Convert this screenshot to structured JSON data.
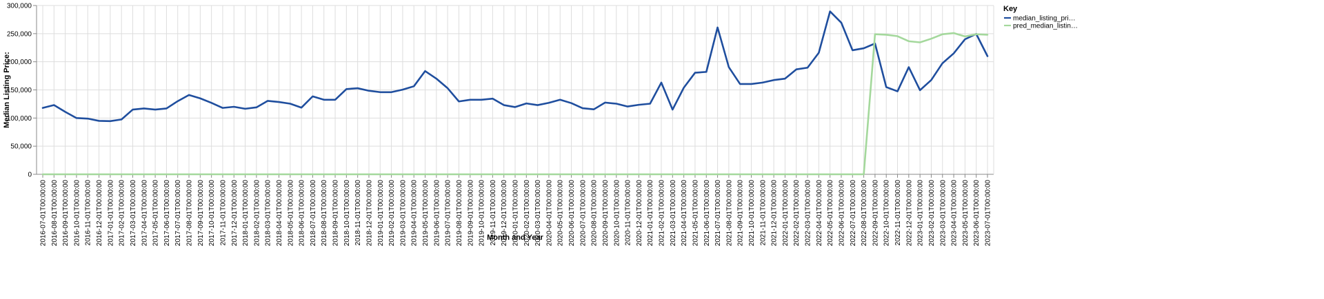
{
  "chart_data": {
    "type": "line",
    "xlabel": "Month and Year",
    "ylabel": "Median Listing Price:",
    "ylim": [
      0,
      300000
    ],
    "y_ticks": [
      "0",
      "50,000",
      "100,000",
      "150,000",
      "200,000",
      "250,000",
      "300,000"
    ],
    "grid": true,
    "legend": {
      "title": "Key",
      "placement": "right",
      "entries": [
        "median_listing_pri…",
        "pred_median_listin…"
      ]
    },
    "x": [
      "2016-07-01T00:00:00",
      "2016-08-01T00:00:00",
      "2016-09-01T00:00:00",
      "2016-10-01T00:00:00",
      "2016-11-01T00:00:00",
      "2016-12-01T00:00:00",
      "2017-01-01T00:00:00",
      "2017-02-01T00:00:00",
      "2017-03-01T00:00:00",
      "2017-04-01T00:00:00",
      "2017-05-01T00:00:00",
      "2017-06-01T00:00:00",
      "2017-07-01T00:00:00",
      "2017-08-01T00:00:00",
      "2017-09-01T00:00:00",
      "2017-10-01T00:00:00",
      "2017-11-01T00:00:00",
      "2017-12-01T00:00:00",
      "2018-01-01T00:00:00",
      "2018-02-01T00:00:00",
      "2018-03-01T00:00:00",
      "2018-04-01T00:00:00",
      "2018-05-01T00:00:00",
      "2018-06-01T00:00:00",
      "2018-07-01T00:00:00",
      "2018-08-01T00:00:00",
      "2018-09-01T00:00:00",
      "2018-10-01T00:00:00",
      "2018-11-01T00:00:00",
      "2018-12-01T00:00:00",
      "2019-01-01T00:00:00",
      "2019-02-01T00:00:00",
      "2019-03-01T00:00:00",
      "2019-04-01T00:00:00",
      "2019-05-01T00:00:00",
      "2019-06-01T00:00:00",
      "2019-07-01T00:00:00",
      "2019-08-01T00:00:00",
      "2019-09-01T00:00:00",
      "2019-10-01T00:00:00",
      "2019-11-01T00:00:00",
      "2019-12-01T00:00:00",
      "2020-01-01T00:00:00",
      "2020-02-01T00:00:00",
      "2020-03-01T00:00:00",
      "2020-04-01T00:00:00",
      "2020-05-01T00:00:00",
      "2020-06-01T00:00:00",
      "2020-07-01T00:00:00",
      "2020-08-01T00:00:00",
      "2020-09-01T00:00:00",
      "2020-10-01T00:00:00",
      "2020-11-01T00:00:00",
      "2020-12-01T00:00:00",
      "2021-01-01T00:00:00",
      "2021-02-01T00:00:00",
      "2021-03-01T00:00:00",
      "2021-04-01T00:00:00",
      "2021-05-01T00:00:00",
      "2021-06-01T00:00:00",
      "2021-07-01T00:00:00",
      "2021-08-01T00:00:00",
      "2021-09-01T00:00:00",
      "2021-10-01T00:00:00",
      "2021-11-01T00:00:00",
      "2021-12-01T00:00:00",
      "2022-01-01T00:00:00",
      "2022-02-01T00:00:00",
      "2022-03-01T00:00:00",
      "2022-04-01T00:00:00",
      "2022-05-01T00:00:00",
      "2022-06-01T00:00:00",
      "2022-07-01T00:00:00",
      "2022-08-01T00:00:00",
      "2022-09-01T00:00:00",
      "2022-10-01T00:00:00",
      "2022-11-01T00:00:00",
      "2022-12-01T00:00:00",
      "2023-01-01T00:00:00",
      "2023-02-01T00:00:00",
      "2023-03-01T00:00:00",
      "2023-04-01T00:00:00",
      "2023-05-01T00:00:00",
      "2023-06-01T00:00:00",
      "2023-07-01T00:00:00"
    ],
    "series": [
      {
        "name": "median_listing_pri…",
        "color": "#1f4e9e",
        "values": [
          118000,
          123000,
          111000,
          100000,
          99000,
          95000,
          94500,
          97500,
          115000,
          117000,
          115000,
          117000,
          130000,
          141000,
          135000,
          127000,
          118000,
          120000,
          116500,
          119000,
          130500,
          128500,
          125500,
          118500,
          138500,
          132500,
          132500,
          151500,
          153000,
          148500,
          146000,
          146000,
          150500,
          156500,
          183500,
          170000,
          153000,
          129500,
          132500,
          132500,
          134500,
          123000,
          119500,
          126000,
          123000,
          127000,
          132500,
          126500,
          117500,
          115500,
          127500,
          125500,
          120500,
          123500,
          125500,
          163000,
          115000,
          154000,
          180500,
          182000,
          261000,
          190500,
          160500,
          160500,
          163000,
          167500,
          170000,
          186500,
          189500,
          216000,
          289500,
          269500,
          220500,
          224000,
          232500,
          155000,
          147500,
          190500,
          149500,
          167500,
          197500,
          215000,
          240000,
          249500,
          210000
        ]
      },
      {
        "name": "pred_median_listin…",
        "color": "#a4d89c",
        "values": [
          0,
          0,
          0,
          0,
          0,
          0,
          0,
          0,
          0,
          0,
          0,
          0,
          0,
          0,
          0,
          0,
          0,
          0,
          0,
          0,
          0,
          0,
          0,
          0,
          0,
          0,
          0,
          0,
          0,
          0,
          0,
          0,
          0,
          0,
          0,
          0,
          0,
          0,
          0,
          0,
          0,
          0,
          0,
          0,
          0,
          0,
          0,
          0,
          0,
          0,
          0,
          0,
          0,
          0,
          0,
          0,
          0,
          0,
          0,
          0,
          0,
          0,
          0,
          0,
          0,
          0,
          0,
          0,
          0,
          0,
          0,
          0,
          0,
          0,
          249000,
          248000,
          245500,
          236500,
          234500,
          241000,
          249000,
          251000,
          245000,
          249000,
          248000
        ]
      }
    ]
  }
}
